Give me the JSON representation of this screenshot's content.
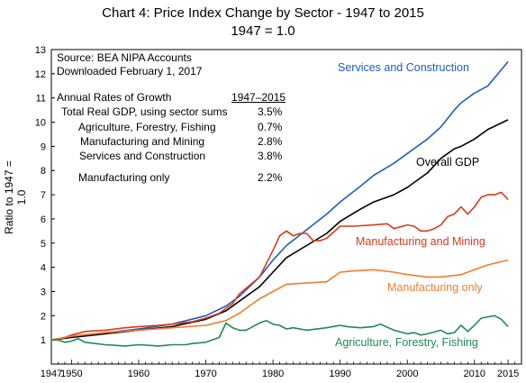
{
  "chart_data": {
    "type": "line",
    "title": "Chart 4:  Price Index Change by Sector - 1947 to 2015",
    "subtitle": "1947 = 1.0",
    "xlabel": "",
    "ylabel": "Ratio to 1947 = 1.0",
    "xlim": [
      1947,
      2017
    ],
    "ylim": [
      0,
      13
    ],
    "xticks": [
      1947,
      1950,
      1960,
      1970,
      1980,
      1990,
      2000,
      2010,
      2015
    ],
    "yticks": [
      1,
      2,
      3,
      4,
      5,
      6,
      7,
      8,
      9,
      10,
      11,
      12,
      13
    ],
    "grid": false,
    "series": [
      {
        "name": "Services and Construction",
        "color": "#1f5cbf",
        "x": [
          1947,
          1950,
          1955,
          1960,
          1965,
          1970,
          1973,
          1975,
          1978,
          1980,
          1982,
          1985,
          1988,
          1990,
          1993,
          1995,
          1998,
          2000,
          2003,
          2005,
          2007,
          2008,
          2010,
          2012,
          2015
        ],
        "y": [
          1.0,
          1.15,
          1.3,
          1.45,
          1.65,
          2.0,
          2.4,
          2.8,
          3.6,
          4.3,
          4.9,
          5.55,
          6.2,
          6.7,
          7.35,
          7.8,
          8.3,
          8.7,
          9.3,
          9.8,
          10.5,
          10.8,
          11.2,
          11.5,
          12.5
        ]
      },
      {
        "name": "Overall GDP",
        "color": "#000000",
        "x": [
          1947,
          1950,
          1955,
          1960,
          1965,
          1970,
          1973,
          1975,
          1978,
          1980,
          1982,
          1985,
          1988,
          1990,
          1993,
          1995,
          1998,
          2000,
          2003,
          2005,
          2007,
          2008,
          2010,
          2012,
          2015
        ],
        "y": [
          1.0,
          1.1,
          1.25,
          1.4,
          1.55,
          1.85,
          2.2,
          2.6,
          3.2,
          3.8,
          4.4,
          4.9,
          5.4,
          5.9,
          6.4,
          6.7,
          7.0,
          7.3,
          7.9,
          8.5,
          8.9,
          9.0,
          9.3,
          9.7,
          10.1
        ]
      },
      {
        "name": "Manufacturing and Mining",
        "color": "#d93a1c",
        "x": [
          1947,
          1949,
          1950,
          1952,
          1955,
          1958,
          1960,
          1963,
          1965,
          1968,
          1970,
          1972,
          1974,
          1975,
          1978,
          1980,
          1981,
          1982,
          1983,
          1984,
          1985,
          1986,
          1987,
          1988,
          1990,
          1992,
          1995,
          1997,
          1998,
          2000,
          2001,
          2002,
          2003,
          2004,
          2005,
          2006,
          2007,
          2008,
          2009,
          2010,
          2011,
          2012,
          2013,
          2014,
          2015
        ],
        "y": [
          1.0,
          1.1,
          1.2,
          1.35,
          1.4,
          1.5,
          1.55,
          1.6,
          1.65,
          1.75,
          1.9,
          2.1,
          2.5,
          2.9,
          3.6,
          4.7,
          5.3,
          5.5,
          5.3,
          5.4,
          5.4,
          5.1,
          5.1,
          5.2,
          5.7,
          5.7,
          5.75,
          5.8,
          5.6,
          5.75,
          5.7,
          5.5,
          5.5,
          5.6,
          5.75,
          6.1,
          6.2,
          6.5,
          6.2,
          6.5,
          6.9,
          7.0,
          7.0,
          7.1,
          6.8
        ]
      },
      {
        "name": "Manufacturing only",
        "color": "#f47b2e",
        "x": [
          1947,
          1950,
          1955,
          1960,
          1965,
          1970,
          1973,
          1975,
          1978,
          1980,
          1982,
          1985,
          1988,
          1990,
          1992,
          1995,
          1998,
          2000,
          2003,
          2005,
          2008,
          2010,
          2012,
          2015
        ],
        "y": [
          1.0,
          1.15,
          1.3,
          1.4,
          1.5,
          1.6,
          1.8,
          2.1,
          2.7,
          3.0,
          3.3,
          3.35,
          3.4,
          3.8,
          3.85,
          3.9,
          3.8,
          3.7,
          3.6,
          3.6,
          3.7,
          3.9,
          4.1,
          4.3
        ]
      },
      {
        "name": "Agriculture, Forestry, Fishing",
        "color": "#1e8a52",
        "x": [
          1947,
          1948,
          1949,
          1950,
          1951,
          1952,
          1955,
          1958,
          1960,
          1963,
          1965,
          1967,
          1968,
          1970,
          1972,
          1973,
          1974,
          1975,
          1976,
          1978,
          1979,
          1980,
          1981,
          1982,
          1983,
          1985,
          1988,
          1990,
          1991,
          1993,
          1995,
          1996,
          1998,
          2000,
          2001,
          2002,
          2003,
          2005,
          2006,
          2007,
          2008,
          2009,
          2010,
          2011,
          2012,
          2013,
          2014,
          2015
        ],
        "y": [
          1.0,
          1.0,
          0.9,
          0.95,
          1.05,
          0.9,
          0.8,
          0.75,
          0.8,
          0.75,
          0.8,
          0.8,
          0.85,
          0.9,
          1.1,
          1.7,
          1.5,
          1.4,
          1.4,
          1.7,
          1.8,
          1.65,
          1.6,
          1.45,
          1.5,
          1.4,
          1.5,
          1.6,
          1.55,
          1.5,
          1.55,
          1.65,
          1.4,
          1.25,
          1.3,
          1.2,
          1.25,
          1.4,
          1.25,
          1.3,
          1.6,
          1.35,
          1.6,
          1.9,
          1.95,
          2.0,
          1.85,
          1.55
        ]
      }
    ],
    "annotations": [
      {
        "text": "Services and Construction",
        "color": "#1f5cbf"
      },
      {
        "text": "Overall GDP",
        "color": "#000000"
      },
      {
        "text": "Manufacturing and Mining",
        "color": "#d93a1c"
      },
      {
        "text": "Manufacturing only",
        "color": "#f47b2e"
      },
      {
        "text": "Agriculture, Forestry, Fishing",
        "color": "#1e8a52"
      }
    ],
    "info_box": {
      "source": "Source: BEA NIPA Accounts",
      "downloaded": "Downloaded February 1, 2017",
      "growth_label": "Annual Rates of Growth",
      "growth_period": "1947–2015",
      "rows": [
        {
          "label": "Total Real GDP, using sector sums",
          "value": "3.5%"
        },
        {
          "label": "Agriculture, Forestry, Fishing",
          "value": "0.7%"
        },
        {
          "label": "Manufacturing and Mining",
          "value": "2.8%"
        },
        {
          "label": "Services and Construction",
          "value": "3.8%"
        },
        {
          "label": "Manufacturing only",
          "value": "2.2%"
        }
      ]
    }
  }
}
